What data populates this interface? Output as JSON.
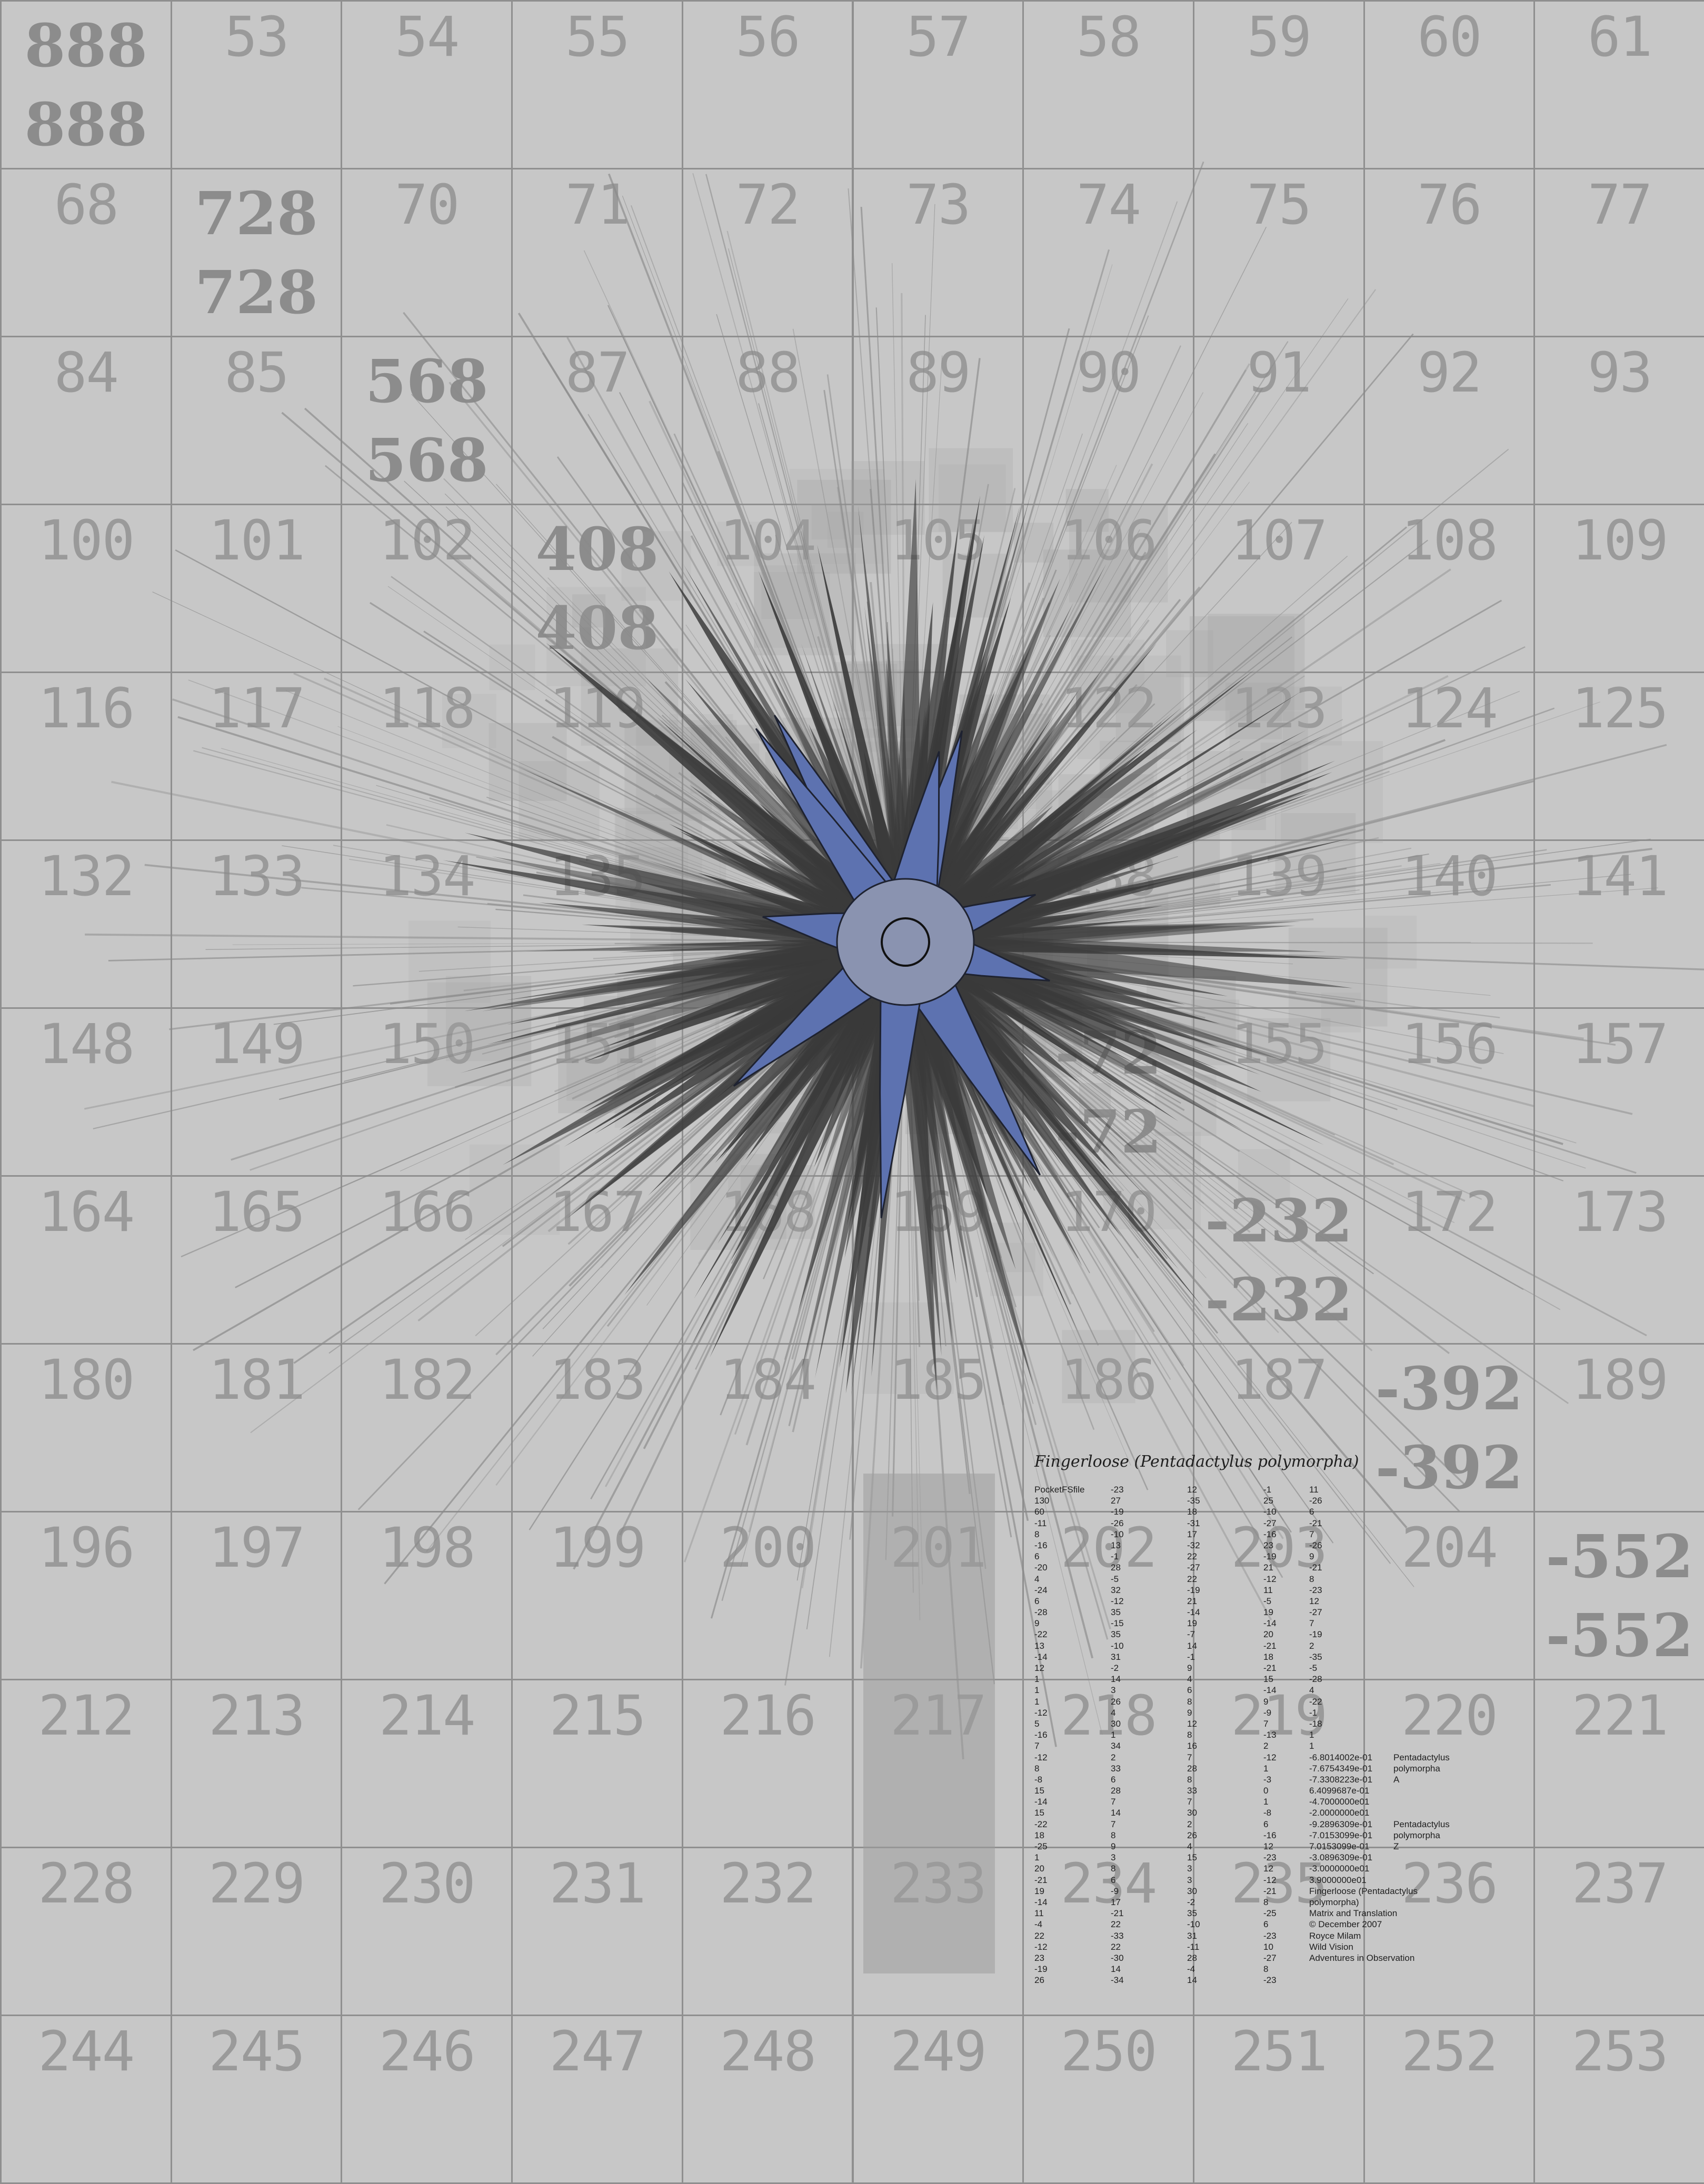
{
  "colors": {
    "background": "#c7c7c7",
    "grid_line": "#8f8f8f",
    "cell_number": "#9a9a9a",
    "bold_number": "#8c8c8c",
    "ray_dark": "#3a3a3a",
    "ray_light": "#8a8a8a",
    "core_blue": "#5d72b0"
  },
  "grid": {
    "rows": [
      [
        "888",
        "53",
        "54",
        "55",
        "56",
        "57",
        "58",
        "59",
        "60",
        "61"
      ],
      [
        "68",
        "728",
        "70",
        "71",
        "72",
        "73",
        "74",
        "75",
        "76",
        "77"
      ],
      [
        "84",
        "85",
        "568",
        "87",
        "88",
        "89",
        "90",
        "91",
        "92",
        "93"
      ],
      [
        "100",
        "101",
        "102",
        "408",
        "104",
        "105",
        "106",
        "107",
        "108",
        "109"
      ],
      [
        "116",
        "117",
        "118",
        "119",
        "",
        "",
        "122",
        "123",
        "124",
        "125"
      ],
      [
        "132",
        "133",
        "134",
        "135",
        "",
        "",
        "138",
        "139",
        "140",
        "141"
      ],
      [
        "148",
        "149",
        "150",
        "151",
        "",
        "",
        "-72",
        "155",
        "156",
        "157"
      ],
      [
        "164",
        "165",
        "166",
        "167",
        "168",
        "169",
        "170",
        "-232",
        "172",
        "173"
      ],
      [
        "180",
        "181",
        "182",
        "183",
        "184",
        "185",
        "186",
        "187",
        "-392",
        "189"
      ],
      [
        "196",
        "197",
        "198",
        "199",
        "200",
        "201",
        "202",
        "203",
        "204",
        "-552"
      ],
      [
        "212",
        "213",
        "214",
        "215",
        "216",
        "217",
        "218",
        "219",
        "220",
        "221"
      ],
      [
        "228",
        "229",
        "230",
        "231",
        "232",
        "233",
        "234",
        "235",
        "236",
        "237"
      ],
      [
        "244",
        "245",
        "246",
        "247",
        "248",
        "249",
        "250",
        "251",
        "252",
        "253"
      ]
    ],
    "bold_cells": [
      "888",
      "728",
      "568",
      "408",
      "-72",
      "-232",
      "-392",
      "-552"
    ]
  },
  "caption": {
    "title": "Fingerloose (Pentadactylus polymorpha)",
    "header": [
      "PocketFSfile",
      "-23",
      "12",
      "-1",
      "11"
    ],
    "matrix": [
      [
        "130",
        "27",
        "-35",
        "25",
        "-26"
      ],
      [
        "60",
        "-19",
        "18",
        "-10",
        "6"
      ],
      [
        "-11",
        "-26",
        "-31",
        "-27",
        "-21"
      ],
      [
        "8",
        "-10",
        "17",
        "-16",
        "7"
      ],
      [
        "-16",
        "13",
        "-32",
        "23",
        "-26"
      ],
      [
        "6",
        "-1",
        "22",
        "-19",
        "9"
      ],
      [
        "-20",
        "28",
        "-27",
        "21",
        "-21"
      ],
      [
        "4",
        "-5",
        "22",
        "-12",
        "8"
      ],
      [
        "-24",
        "32",
        "-19",
        "11",
        "-23"
      ],
      [
        "6",
        "-12",
        "21",
        "-5",
        "12"
      ],
      [
        "-28",
        "35",
        "-14",
        "19",
        "-27"
      ],
      [
        "9",
        "-15",
        "19",
        "-14",
        "7"
      ],
      [
        "-22",
        "35",
        "-7",
        "20",
        "-19"
      ],
      [
        "13",
        "-10",
        "14",
        "-21",
        "2"
      ],
      [
        "-14",
        "31",
        "-1",
        "18",
        "-35"
      ],
      [
        "12",
        "-2",
        "9",
        "-21",
        "-5"
      ],
      [
        "1",
        "14",
        "4",
        "15",
        "-28"
      ],
      [
        "1",
        "3",
        "6",
        "-14",
        "4"
      ],
      [
        "1",
        "26",
        "8",
        "9",
        "-22"
      ],
      [
        "-12",
        "4",
        "9",
        "-9",
        "-1"
      ],
      [
        "5",
        "30",
        "12",
        "7",
        "-18"
      ],
      [
        "-16",
        "1",
        "8",
        "-13",
        "1"
      ],
      [
        "7",
        "34",
        "16",
        "2",
        "1"
      ],
      [
        "-12",
        "2",
        "7",
        "-12",
        ""
      ],
      [
        "8",
        "33",
        "28",
        "1",
        ""
      ],
      [
        "-8",
        "6",
        "8",
        "-3",
        ""
      ],
      [
        "15",
        "28",
        "33",
        "0",
        ""
      ],
      [
        "-14",
        "7",
        "7",
        "1",
        ""
      ],
      [
        "15",
        "14",
        "30",
        "-8",
        ""
      ],
      [
        "-22",
        "7",
        "2",
        "6",
        ""
      ],
      [
        "18",
        "8",
        "26",
        "-16",
        ""
      ],
      [
        "-25",
        "9",
        "4",
        "12",
        ""
      ],
      [
        "1",
        "3",
        "15",
        "-23",
        ""
      ],
      [
        "20",
        "8",
        "3",
        "12",
        ""
      ],
      [
        "-21",
        "6",
        "3",
        "-12",
        ""
      ],
      [
        "19",
        "-9",
        "30",
        "-21",
        ""
      ],
      [
        "-14",
        "17",
        "-2",
        "8",
        ""
      ],
      [
        "11",
        "-21",
        "35",
        "-25",
        ""
      ],
      [
        "-4",
        "22",
        "-10",
        "6",
        ""
      ],
      [
        "22",
        "-33",
        "31",
        "-23",
        ""
      ],
      [
        "-12",
        "22",
        "-11",
        "10",
        ""
      ],
      [
        "23",
        "-30",
        "28",
        "-27",
        ""
      ],
      [
        "-19",
        "14",
        "-4",
        "8",
        ""
      ],
      [
        "26",
        "-34",
        "14",
        "-23",
        ""
      ]
    ],
    "transform": [
      [
        "-6.8014002e-01",
        "Pentadactylus"
      ],
      [
        "-7.6754349e-01",
        "polymorpha"
      ],
      [
        "-7.3308223e-01",
        "A"
      ],
      [
        "6.4099687e-01",
        ""
      ],
      [
        "-4.7000000e01",
        ""
      ],
      [
        "-2.0000000e01",
        ""
      ],
      [
        "-9.2896309e-01",
        "Pentadactylus"
      ],
      [
        "-7.0153099e-01",
        "polymorpha"
      ],
      [
        "7.0153099e-01",
        "Z"
      ],
      [
        "-3.0896309e-01",
        ""
      ],
      [
        "-3.0000000e01",
        ""
      ],
      [
        "3.9000000e01",
        ""
      ]
    ],
    "credits": [
      "Fingerloose (Pentadactylus",
      "polymorpha)",
      "Matrix and Translation",
      "© December 2007",
      "Royce Milam",
      "Wild Vision",
      "Adventures in Observation"
    ]
  }
}
